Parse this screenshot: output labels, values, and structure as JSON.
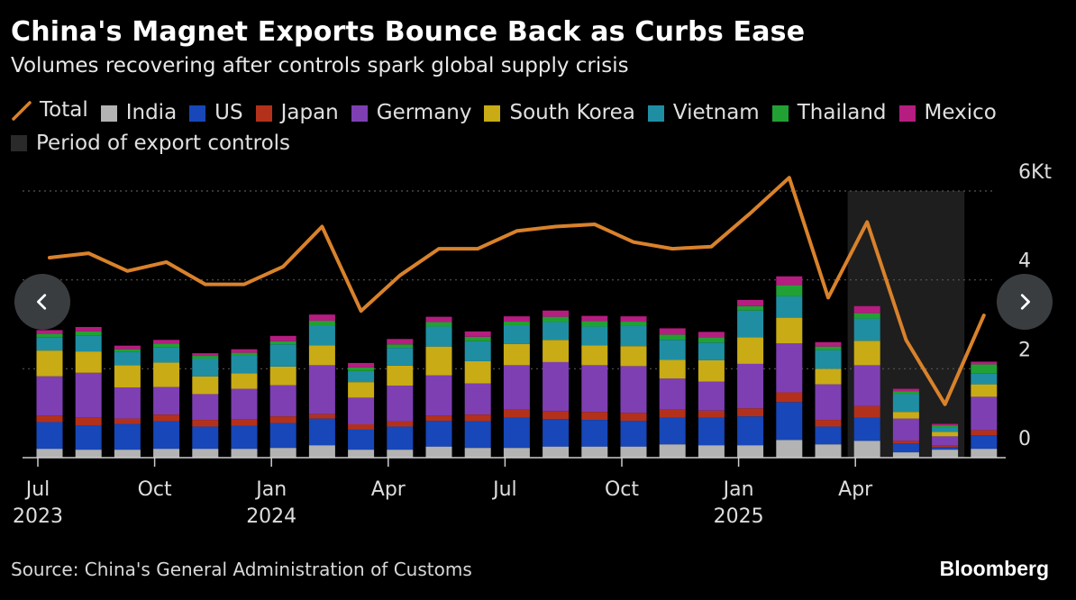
{
  "title": "China's Magnet Exports Bounce Back as Curbs Ease",
  "subtitle": "Volumes recovering after controls spark global supply crisis",
  "legend": [
    {
      "label": "Total",
      "kind": "line",
      "color": "#d9822b"
    },
    {
      "label": "India",
      "kind": "box",
      "color": "#b3b3b3"
    },
    {
      "label": "US",
      "kind": "box",
      "color": "#1747b8"
    },
    {
      "label": "Japan",
      "kind": "box",
      "color": "#b3311b"
    },
    {
      "label": "Germany",
      "kind": "box",
      "color": "#7e3fb3"
    },
    {
      "label": "South Korea",
      "kind": "box",
      "color": "#c9ab15"
    },
    {
      "label": "Vietnam",
      "kind": "box",
      "color": "#1f8ea3"
    },
    {
      "label": "Thailand",
      "kind": "box",
      "color": "#21a133"
    },
    {
      "label": "Mexico",
      "kind": "box",
      "color": "#b51d80"
    },
    {
      "label": "Period of export controls",
      "kind": "box",
      "color": "#2a2a2a"
    }
  ],
  "source": "Source: China's General Administration of Customs",
  "brand": "Bloomberg",
  "nav": {
    "prev_icon": "chevron-left-icon",
    "next_icon": "chevron-right-icon"
  },
  "chart_data": {
    "type": "bar",
    "stacked": true,
    "unit": "Kt",
    "ylim": [
      0,
      6
    ],
    "yticks": [
      {
        "value": 0,
        "label": "0"
      },
      {
        "value": 2,
        "label": "2"
      },
      {
        "value": 4,
        "label": "4"
      },
      {
        "value": 6,
        "label": "6Kt"
      }
    ],
    "categories": [
      "2023-07",
      "2023-08",
      "2023-09",
      "2023-10",
      "2023-11",
      "2023-12",
      "2024-01",
      "2024-02",
      "2024-03",
      "2024-04",
      "2024-05",
      "2024-06",
      "2024-07",
      "2024-08",
      "2024-09",
      "2024-10",
      "2024-11",
      "2024-12",
      "2025-01",
      "2025-02",
      "2025-03",
      "2025-04",
      "2025-05",
      "2025-06",
      "2025-07"
    ],
    "xticks": [
      {
        "index": 0,
        "label": "Jul",
        "year": "2023"
      },
      {
        "index": 3,
        "label": "Oct",
        "year": ""
      },
      {
        "index": 6,
        "label": "Jan",
        "year": "2024"
      },
      {
        "index": 9,
        "label": "Apr",
        "year": ""
      },
      {
        "index": 12,
        "label": "Jul",
        "year": ""
      },
      {
        "index": 15,
        "label": "Oct",
        "year": ""
      },
      {
        "index": 18,
        "label": "Jan",
        "year": "2025"
      },
      {
        "index": 21,
        "label": "Apr",
        "year": ""
      }
    ],
    "shaded_period": {
      "label": "Period of export controls",
      "start": "2025-04",
      "end": "2025-06"
    },
    "series": [
      {
        "name": "India",
        "color": "#b3b3b3",
        "values": [
          0.2,
          0.18,
          0.18,
          0.2,
          0.2,
          0.2,
          0.22,
          0.28,
          0.18,
          0.18,
          0.25,
          0.22,
          0.22,
          0.25,
          0.25,
          0.25,
          0.3,
          0.28,
          0.28,
          0.4,
          0.3,
          0.38,
          0.12,
          0.18,
          0.2
        ]
      },
      {
        "name": "US",
        "color": "#1747b8",
        "values": [
          0.6,
          0.55,
          0.58,
          0.62,
          0.5,
          0.52,
          0.56,
          0.6,
          0.45,
          0.52,
          0.58,
          0.6,
          0.68,
          0.62,
          0.6,
          0.58,
          0.6,
          0.62,
          0.65,
          0.85,
          0.4,
          0.52,
          0.2,
          0.06,
          0.3
        ]
      },
      {
        "name": "Japan",
        "color": "#b3311b",
        "values": [
          0.15,
          0.18,
          0.12,
          0.15,
          0.15,
          0.15,
          0.15,
          0.1,
          0.12,
          0.12,
          0.12,
          0.15,
          0.18,
          0.18,
          0.18,
          0.18,
          0.18,
          0.16,
          0.18,
          0.22,
          0.15,
          0.26,
          0.06,
          0.04,
          0.12
        ]
      },
      {
        "name": "Germany",
        "color": "#7e3fb3",
        "values": [
          0.88,
          1.0,
          0.7,
          0.62,
          0.58,
          0.68,
          0.7,
          1.1,
          0.6,
          0.8,
          0.9,
          0.7,
          1.0,
          1.1,
          1.05,
          1.05,
          0.7,
          0.65,
          1.0,
          1.1,
          0.8,
          0.92,
          0.5,
          0.2,
          0.75
        ]
      },
      {
        "name": "South Korea",
        "color": "#c9ab15",
        "values": [
          0.58,
          0.48,
          0.5,
          0.55,
          0.4,
          0.35,
          0.42,
          0.45,
          0.35,
          0.45,
          0.65,
          0.5,
          0.48,
          0.5,
          0.45,
          0.45,
          0.42,
          0.48,
          0.6,
          0.58,
          0.35,
          0.55,
          0.15,
          0.1,
          0.28
        ]
      },
      {
        "name": "Vietnam",
        "color": "#1f8ea3",
        "values": [
          0.3,
          0.35,
          0.3,
          0.35,
          0.4,
          0.4,
          0.5,
          0.45,
          0.25,
          0.4,
          0.45,
          0.45,
          0.42,
          0.4,
          0.42,
          0.45,
          0.45,
          0.4,
          0.6,
          0.48,
          0.42,
          0.5,
          0.4,
          0.1,
          0.25
        ]
      },
      {
        "name": "Thailand",
        "color": "#21a133",
        "values": [
          0.08,
          0.1,
          0.06,
          0.08,
          0.06,
          0.06,
          0.07,
          0.1,
          0.08,
          0.08,
          0.1,
          0.1,
          0.08,
          0.12,
          0.12,
          0.1,
          0.12,
          0.12,
          0.1,
          0.25,
          0.08,
          0.12,
          0.06,
          0.04,
          0.2
        ]
      },
      {
        "name": "Mexico",
        "color": "#b51d80",
        "values": [
          0.08,
          0.1,
          0.08,
          0.08,
          0.06,
          0.08,
          0.12,
          0.14,
          0.1,
          0.12,
          0.12,
          0.12,
          0.12,
          0.14,
          0.12,
          0.12,
          0.14,
          0.12,
          0.14,
          0.2,
          0.1,
          0.16,
          0.06,
          0.04,
          0.06
        ]
      }
    ],
    "total": {
      "name": "Total",
      "color": "#d9822b",
      "values": [
        4.5,
        4.6,
        4.2,
        4.4,
        3.9,
        3.9,
        4.3,
        5.2,
        3.3,
        4.1,
        4.7,
        4.7,
        5.1,
        5.2,
        5.25,
        4.85,
        4.7,
        4.75,
        5.5,
        6.3,
        3.6,
        5.3,
        2.65,
        1.2,
        3.2
      ]
    }
  }
}
